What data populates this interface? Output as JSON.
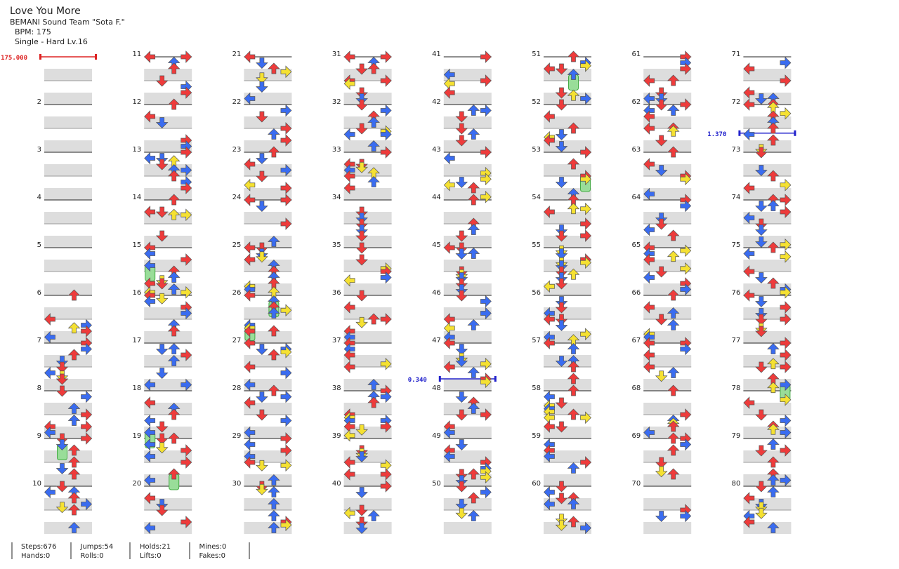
{
  "header": {
    "title": "Love You More",
    "artist": "BEMANI Sound Team \"Sota F.\"",
    "bpm": "BPM: 175",
    "difficulty": "Single - Hard  Lv.16"
  },
  "measure_labels": [
    2,
    3,
    4,
    5,
    6,
    7,
    8,
    9,
    10,
    11,
    12,
    13,
    14,
    15,
    16,
    17,
    18,
    19,
    20,
    21,
    22,
    23,
    24,
    25,
    26,
    27,
    28,
    29,
    30,
    31,
    32,
    33,
    34,
    35,
    36,
    37,
    38,
    39,
    40,
    41,
    42,
    43,
    44,
    45,
    46,
    47,
    48,
    49,
    50,
    51,
    52,
    53,
    54,
    55,
    56,
    57,
    58,
    59,
    60,
    61,
    62,
    63,
    64,
    65,
    66,
    67,
    68,
    69,
    70,
    71,
    72,
    73,
    74,
    75,
    76,
    77,
    78,
    79,
    80
  ],
  "markers": [
    {
      "label": "175.000",
      "measure": 1,
      "kind": "bpm"
    },
    {
      "label": "0.340",
      "measure": 47.75,
      "kind": "stop"
    },
    {
      "label": "1.370",
      "measure": 72.6,
      "kind": "stop"
    }
  ],
  "stats": [
    [
      "Steps:676",
      "Hands:0"
    ],
    [
      "Jumps:54",
      "Rolls:0"
    ],
    [
      "Holds:21",
      "Lifts:0"
    ],
    [
      "Mines:0",
      "Fakes:0"
    ]
  ]
}
